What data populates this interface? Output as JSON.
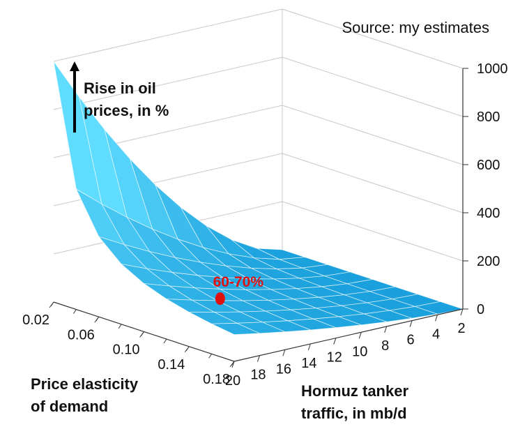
{
  "chart_data": {
    "type": "surface",
    "source": "Source: my estimates",
    "zlabel_lines": [
      "Rise in oil",
      "prices, in %"
    ],
    "xlabel_lines": [
      "Price elasticity",
      "of demand"
    ],
    "ylabel_lines": [
      "Hormuz tanker",
      "traffic, in mb/d"
    ],
    "z_ticks": [
      "0",
      "200",
      "400",
      "600",
      "800",
      "1000"
    ],
    "z_range": [
      0,
      1000
    ],
    "x_ticks": [
      "0.02",
      "0.06",
      "0.10",
      "0.14",
      "0.18"
    ],
    "x_range": [
      0.02,
      0.18
    ],
    "y_ticks": [
      "20",
      "18",
      "16",
      "14",
      "12",
      "10",
      "8",
      "6",
      "4",
      "2"
    ],
    "y_range": [
      2,
      20
    ],
    "x_grid": [
      0.02,
      0.04,
      0.06,
      0.08,
      0.1,
      0.12,
      0.14,
      0.16,
      0.18
    ],
    "y_grid": [
      2,
      4,
      6,
      8,
      10,
      12,
      14,
      16,
      18,
      20
    ],
    "surface_peak": {
      "x": 0.02,
      "y": 20,
      "z": 1000
    },
    "surface_corner_low": {
      "x": 0.18,
      "y": 2,
      "z": 0
    },
    "annotation": {
      "label": "60-70%",
      "x": 0.1,
      "y": 14,
      "z": 65
    },
    "colors": {
      "surface": "#1aa6e0",
      "surface_light": "#5fdcff",
      "annotation": "#e01010",
      "grid": "#c8c8c8",
      "axis": "#333333"
    }
  }
}
